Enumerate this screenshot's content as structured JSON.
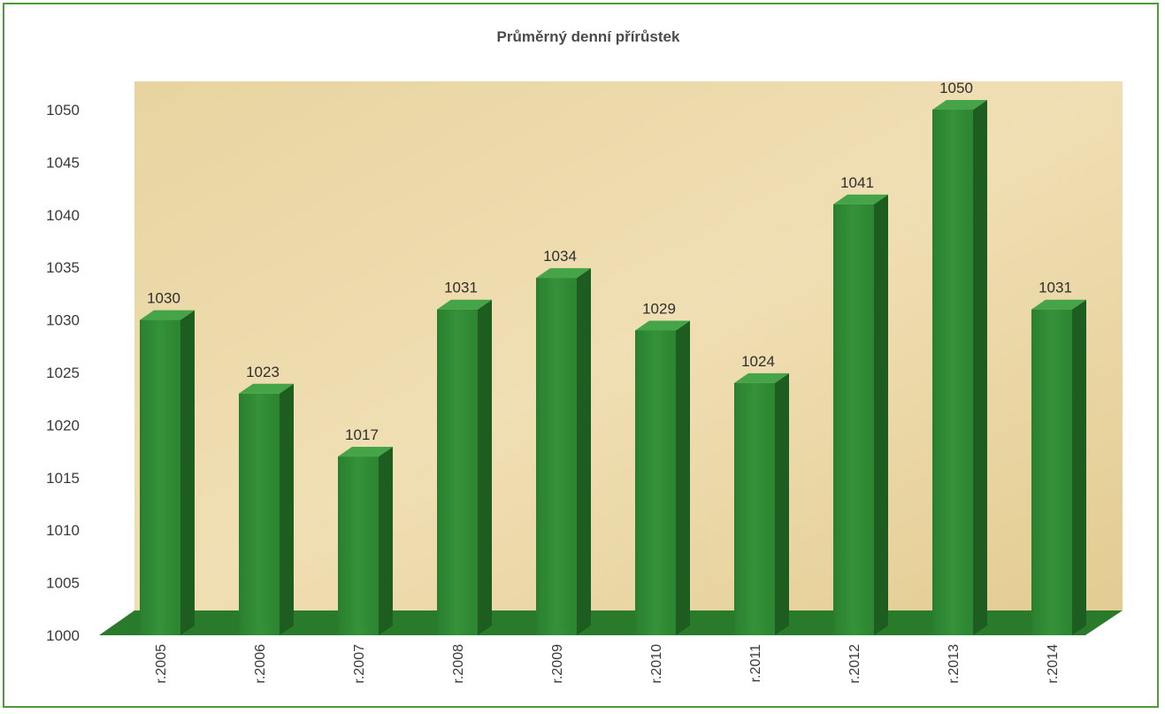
{
  "chart_data": {
    "type": "bar",
    "title": "Průměrný denní přírůstek",
    "xlabel": "",
    "ylabel": "",
    "categories": [
      "r.2005",
      "r.2006",
      "r.2007",
      "r.2008",
      "r.2009",
      "r.2010",
      "r.2011",
      "r.2012",
      "r.2013",
      "r.2014"
    ],
    "values": [
      1030,
      1023,
      1017,
      1031,
      1034,
      1029,
      1024,
      1041,
      1050,
      1031
    ],
    "ylim": [
      1000,
      1050
    ],
    "yticks": [
      1000,
      1005,
      1010,
      1015,
      1020,
      1025,
      1030,
      1035,
      1040,
      1045,
      1050
    ],
    "grid": false,
    "legend": "none",
    "style": "3d-column",
    "colors": {
      "bar_front": "#2f8a32",
      "bar_side": "#1d5e20",
      "bar_top": "#45a447",
      "floor": "#2a7a2c",
      "wall": "#ead8a6",
      "frame": "#4f9a3a"
    }
  }
}
